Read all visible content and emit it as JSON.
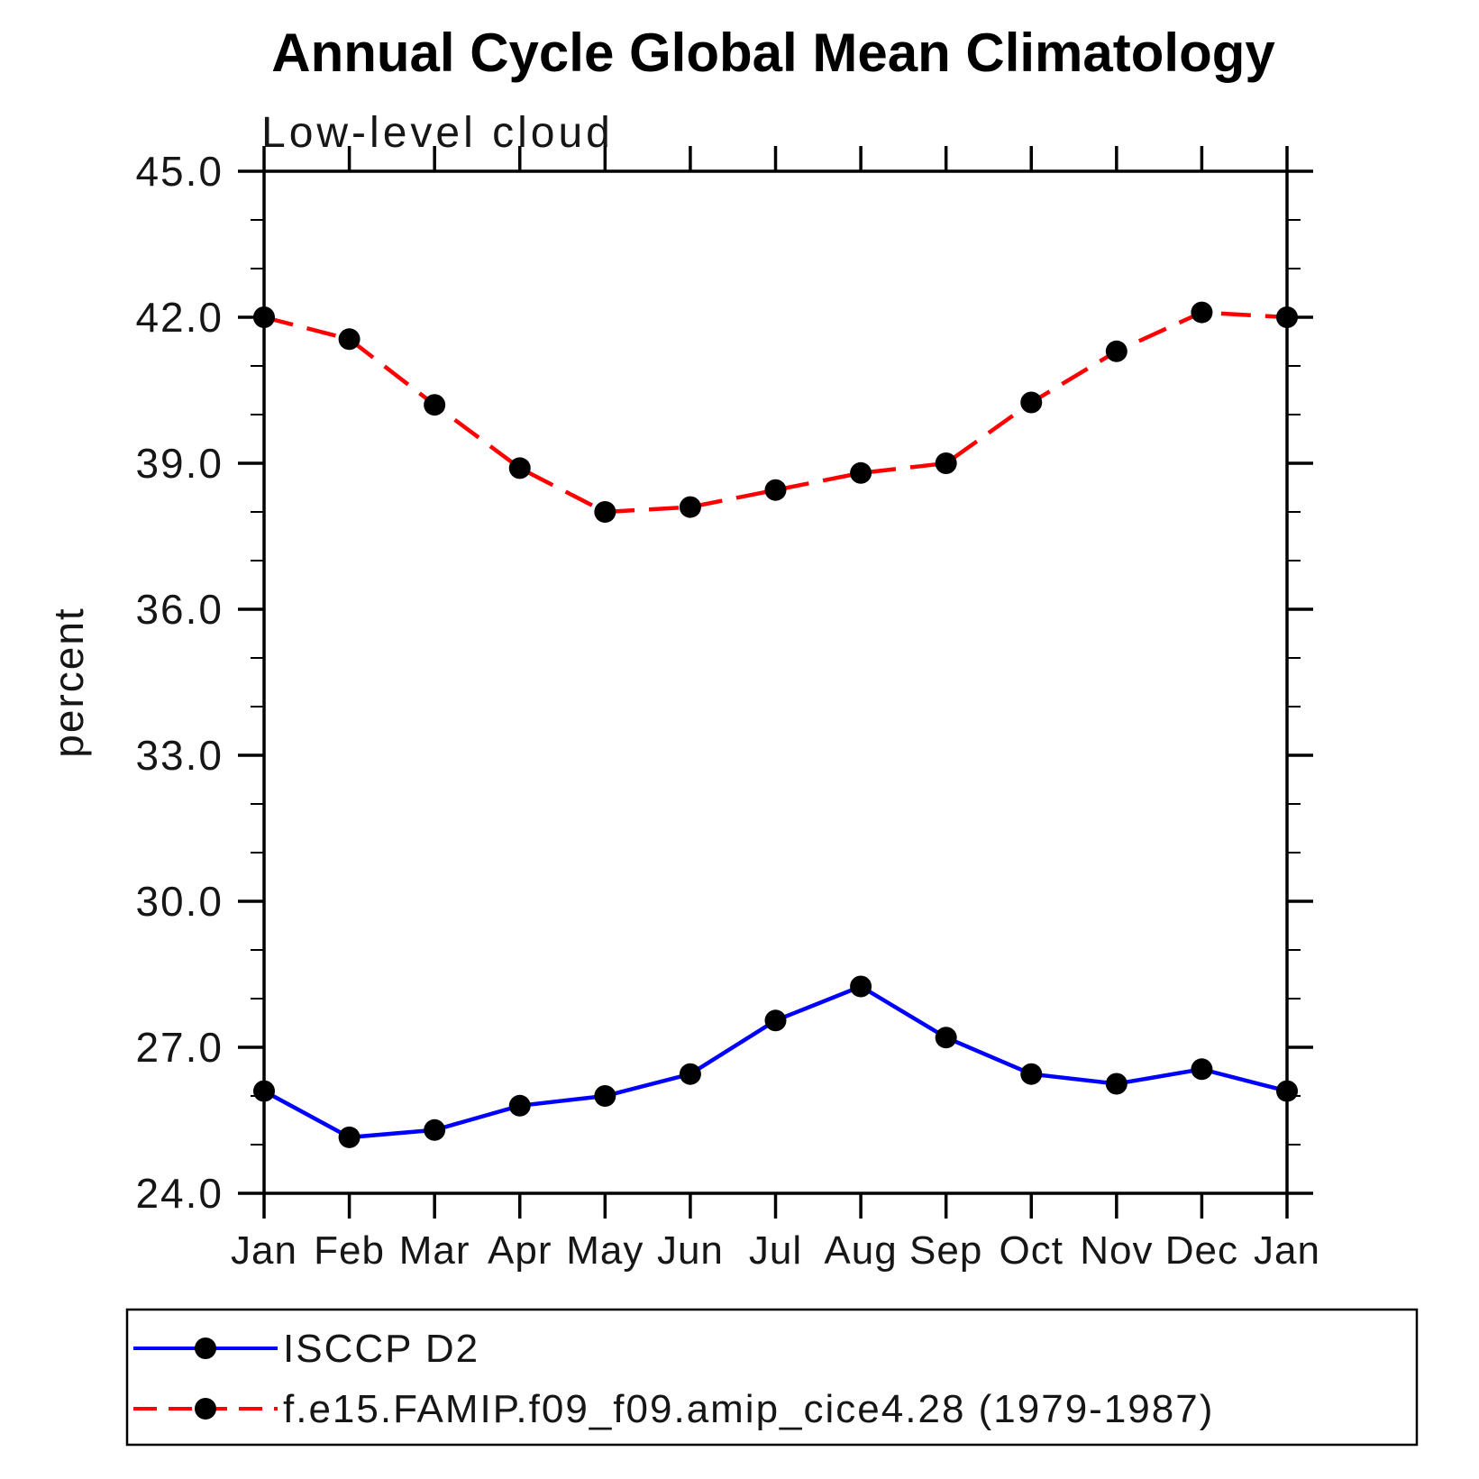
{
  "page": {
    "background": "#ffffff",
    "axis_color": "#000000"
  },
  "chart_data": {
    "type": "line",
    "title": "Annual Cycle Global Mean Climatology",
    "subtitle": "Low-level cloud",
    "ylabel": "percent",
    "xlabel": "",
    "categories": [
      "Jan",
      "Feb",
      "Mar",
      "Apr",
      "May",
      "Jun",
      "Jul",
      "Aug",
      "Sep",
      "Oct",
      "Nov",
      "Dec",
      "Jan"
    ],
    "ylim": [
      24.0,
      45.0
    ],
    "y_major_tick_values": [
      24,
      27,
      30,
      33,
      36,
      39,
      42,
      45
    ],
    "y_major_tick_labels": [
      "24.0",
      "27.0",
      "30.0",
      "33.0",
      "36.0",
      "39.0",
      "42.0",
      "45.0"
    ],
    "y_minor_tick_step": 1,
    "grid": "off",
    "legend_position": "bottom-left-box",
    "series": [
      {
        "name": "ISCCP D2",
        "color": "#0000ff",
        "style": "solid",
        "marker": "filled-circle",
        "marker_color": "#000000",
        "values": [
          26.1,
          25.15,
          25.3,
          25.8,
          26.0,
          26.45,
          27.55,
          28.25,
          27.2,
          26.45,
          26.25,
          26.55,
          26.1
        ]
      },
      {
        "name": "f.e15.FAMIP.f09_f09.amip_cice4.28 (1979-1987)",
        "color": "#ff0000",
        "style": "dashed",
        "marker": "filled-circle",
        "marker_color": "#000000",
        "values": [
          42.0,
          41.55,
          40.2,
          38.9,
          38.0,
          38.1,
          38.45,
          38.8,
          39.0,
          40.25,
          41.3,
          42.1,
          42.0
        ]
      }
    ]
  }
}
